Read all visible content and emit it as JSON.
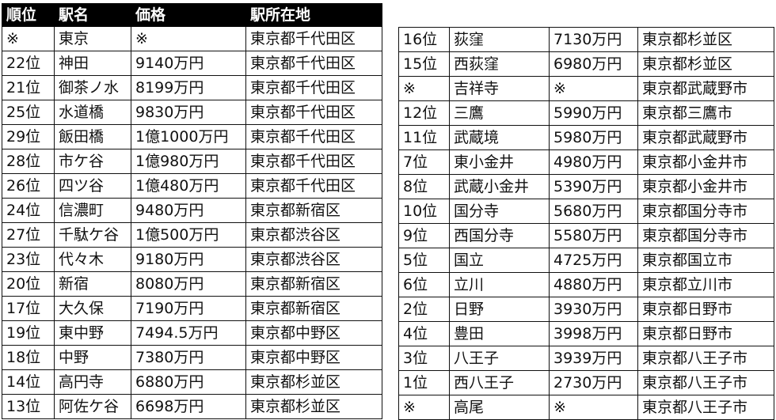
{
  "headers": [
    "順位",
    "駅名",
    "価格",
    "駅所在地"
  ],
  "left_rows": [
    [
      "※",
      "東京",
      "※",
      "東京都千代田区"
    ],
    [
      "22位",
      "神田",
      "9140万円",
      "東京都千代田区"
    ],
    [
      "21位",
      "御茶ノ水",
      "8199万円",
      "東京都千代田区"
    ],
    [
      "25位",
      "水道橋",
      "9830万円",
      "東京都千代田区"
    ],
    [
      "29位",
      "飯田橋",
      "1億1000万円",
      "東京都千代田区"
    ],
    [
      "28位",
      "市ケ谷",
      "1億980万円",
      "東京都千代田区"
    ],
    [
      "26位",
      "四ツ谷",
      "1億480万円",
      "東京都千代田区"
    ],
    [
      "24位",
      "信濃町",
      "9480万円",
      "東京都新宿区"
    ],
    [
      "27位",
      "千駄ケ谷",
      "1億500万円",
      "東京都渋谷区"
    ],
    [
      "23位",
      "代々木",
      "9180万円",
      "東京都渋谷区"
    ],
    [
      "20位",
      "新宿",
      "8080万円",
      "東京都新宿区"
    ],
    [
      "17位",
      "大久保",
      "7190万円",
      "東京都新宿区"
    ],
    [
      "19位",
      "東中野",
      "7494.5万円",
      "東京都中野区"
    ],
    [
      "18位",
      "中野",
      "7380万円",
      "東京都中野区"
    ],
    [
      "14位",
      "高円寺",
      "6880万円",
      "東京都杉並区"
    ],
    [
      "13位",
      "阿佐ケ谷",
      "6698万円",
      "東京都杉並区"
    ]
  ],
  "right_rows": [
    [
      "16位",
      "荻窪",
      "7130万円",
      "東京都杉並区"
    ],
    [
      "15位",
      "西荻窪",
      "6980万円",
      "東京都杉並区"
    ],
    [
      "※",
      "吉祥寺",
      "※",
      "東京都武蔵野市"
    ],
    [
      "12位",
      "三鷹",
      "5990万円",
      "東京都三鷹市"
    ],
    [
      "11位",
      "武蔵境",
      "5980万円",
      "東京都武蔵野市"
    ],
    [
      "7位",
      "東小金井",
      "4980万円",
      "東京都小金井市"
    ],
    [
      "8位",
      "武蔵小金井",
      "5390万円",
      "東京都小金井市"
    ],
    [
      "10位",
      "国分寺",
      "5680万円",
      "東京都国分寺市"
    ],
    [
      "9位",
      "西国分寺",
      "5580万円",
      "東京都国分寺市"
    ],
    [
      "5位",
      "国立",
      "4725万円",
      "東京都国立市"
    ],
    [
      "6位",
      "立川",
      "4880万円",
      "東京都立川市"
    ],
    [
      "2位",
      "日野",
      "3930万円",
      "東京都日野市"
    ],
    [
      "4位",
      "豊田",
      "3998万円",
      "東京都日野市"
    ],
    [
      "3位",
      "八王子",
      "3939万円",
      "東京都八王子市"
    ],
    [
      "1位",
      "西八王子",
      "2730万円",
      "東京都八王子市"
    ],
    [
      "※",
      "高尾",
      "※",
      "東京都八王子市"
    ]
  ]
}
